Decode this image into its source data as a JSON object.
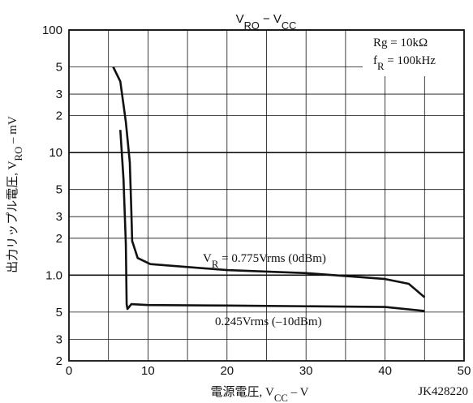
{
  "chart_data": {
    "type": "line",
    "title_parts": [
      {
        "text": "V"
      },
      {
        "text": "RO",
        "sub": true
      },
      {
        "text": " − V"
      },
      {
        "text": "CC",
        "sub": true
      }
    ],
    "xlabel_parts": [
      {
        "text": "電源電圧, V"
      },
      {
        "text": "CC",
        "sub": true
      },
      {
        "text": " – V"
      }
    ],
    "ylabel_parts": [
      {
        "text": "出力リップル電圧, V"
      },
      {
        "text": "RO",
        "sub": true
      },
      {
        "text": " – mV"
      }
    ],
    "code": "JK428220",
    "notes": [
      [
        {
          "text": "Rg = 10kΩ"
        }
      ],
      [
        {
          "text": "f"
        },
        {
          "text": "R",
          "sub": true
        },
        {
          "text": " = 100kHz"
        }
      ]
    ],
    "xlim": [
      0,
      50
    ],
    "xticks": [
      0,
      10,
      20,
      30,
      40,
      50
    ],
    "x_minor_grid": [
      5,
      15,
      25,
      35,
      45
    ],
    "ylim": [
      0.2,
      100
    ],
    "log_y": true,
    "grid": true,
    "yticks": [
      100,
      {
        "value": 50,
        "label": "5"
      },
      {
        "value": 30,
        "label": "3"
      },
      {
        "value": 20,
        "label": "2"
      },
      10,
      5,
      3,
      2,
      {
        "value": 1,
        "label": "1.0"
      },
      {
        "value": 0.5,
        "label": "5"
      },
      {
        "value": 0.3,
        "label": "3"
      },
      {
        "value": 0.2,
        "label": "2"
      }
    ],
    "series": [
      {
        "label_parts": [
          {
            "text": "V"
          },
          {
            "text": "R",
            "sub": true
          },
          {
            "text": " = 0.775Vrms (0dBm)"
          }
        ],
        "color": "#111",
        "x": [
          5.6,
          6.5,
          7.2,
          7.7,
          7.9,
          8.0,
          8.7,
          10.3,
          20,
          30,
          40,
          43,
          45
        ],
        "values": [
          50,
          38,
          17.8,
          8.3,
          3.3,
          1.9,
          1.38,
          1.23,
          1.1,
          1.04,
          0.93,
          0.85,
          0.66
        ]
      },
      {
        "label_parts": [
          {
            "text": "0.245Vrms (–10dBm)"
          }
        ],
        "color": "#111",
        "x": [
          6.5,
          6.9,
          7.2,
          7.3,
          7.4,
          7.9,
          10,
          20,
          40,
          45
        ],
        "values": [
          15.3,
          6.1,
          1.8,
          0.58,
          0.53,
          0.58,
          0.57,
          0.565,
          0.55,
          0.51
        ]
      }
    ]
  }
}
